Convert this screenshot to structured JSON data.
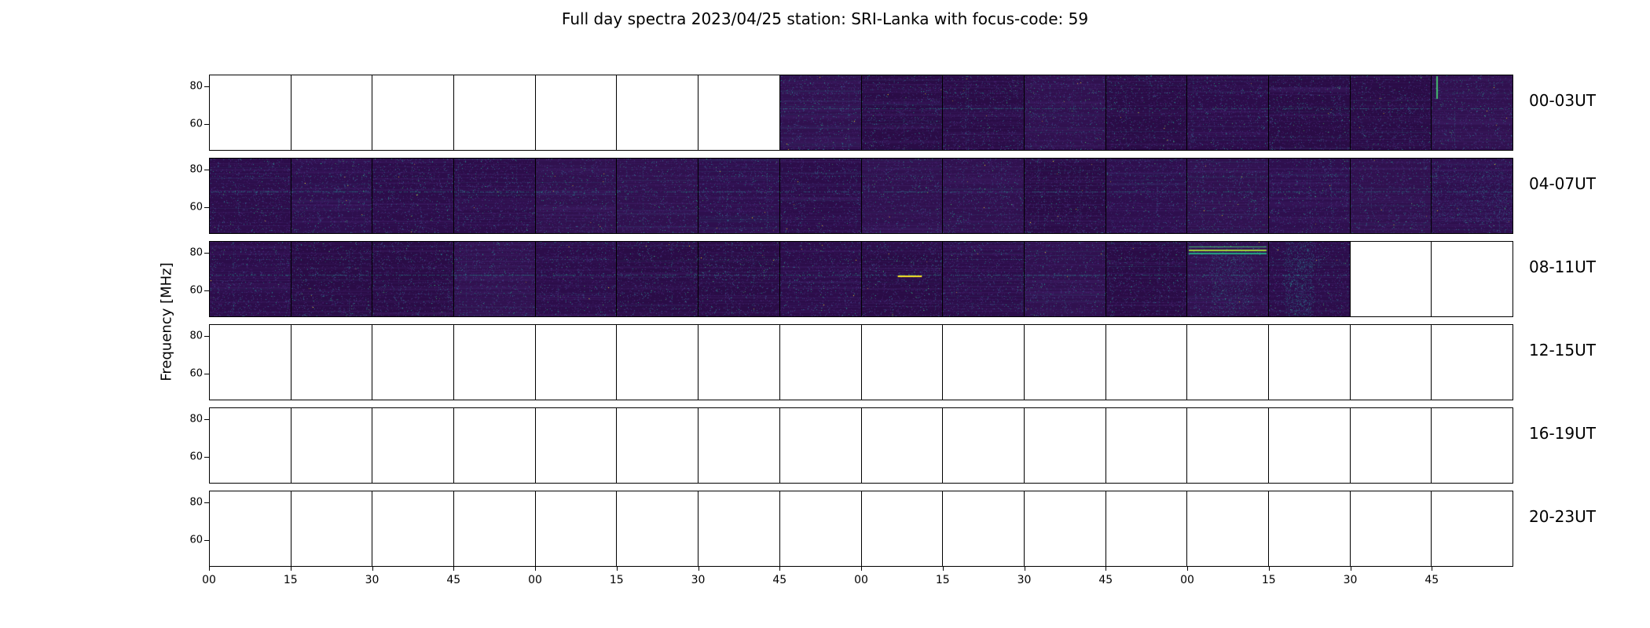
{
  "title": "Full day spectra 2023/04/25 station: SRI-Lanka with focus-code: 59",
  "chart_data": {
    "type": "heatmap",
    "title": "Full day spectra 2023/04/25 station: SRI-Lanka with focus-code: 59",
    "date": "2023/04/25",
    "station": "SRI-Lanka",
    "focus_code": "59",
    "ylabel": "Frequency [MHz]",
    "xlabel": "",
    "ylim": [
      46,
      86
    ],
    "y_ticks": [
      80,
      60
    ],
    "grid": "off",
    "legend": "none",
    "colormap": "viridis",
    "panels_per_row": 16,
    "minutes_per_panel": 15,
    "x_tick_labels": [
      "00",
      "15",
      "30",
      "45",
      "00",
      "15",
      "30",
      "45",
      "00",
      "15",
      "30",
      "45",
      "00",
      "15",
      "30",
      "45"
    ],
    "rows": [
      {
        "label": "00-03UT",
        "filled": [
          0,
          0,
          0,
          0,
          0,
          0,
          0,
          1,
          1,
          1,
          1,
          1,
          1,
          1,
          1,
          1
        ]
      },
      {
        "label": "04-07UT",
        "filled": [
          1,
          1,
          1,
          1,
          1,
          1,
          1,
          1,
          1,
          1,
          1,
          1,
          1,
          1,
          1,
          1
        ]
      },
      {
        "label": "08-11UT",
        "filled": [
          1,
          1,
          1,
          1,
          1,
          1,
          1,
          1,
          1,
          1,
          1,
          1,
          1,
          1,
          0,
          0
        ]
      },
      {
        "label": "12-15UT",
        "filled": [
          0,
          0,
          0,
          0,
          0,
          0,
          0,
          0,
          0,
          0,
          0,
          0,
          0,
          0,
          0,
          0
        ]
      },
      {
        "label": "16-19UT",
        "filled": [
          0,
          0,
          0,
          0,
          0,
          0,
          0,
          0,
          0,
          0,
          0,
          0,
          0,
          0,
          0,
          0
        ]
      },
      {
        "label": "20-23UT",
        "filled": [
          0,
          0,
          0,
          0,
          0,
          0,
          0,
          0,
          0,
          0,
          0,
          0,
          0,
          0,
          0,
          0
        ]
      }
    ],
    "features": [
      {
        "row": 0,
        "panel": 15,
        "type": "green_streak",
        "freq_mhz": 84
      },
      {
        "row": 1,
        "panel": 15,
        "type": "bright_patch",
        "freq_mhz": 70
      },
      {
        "row": 2,
        "panel": 8,
        "type": "yellow_dash",
        "freq_mhz": 68
      },
      {
        "row": 2,
        "panel": 12,
        "type": "bright_band",
        "freq_mhz": 82
      },
      {
        "row": 2,
        "panel": 13,
        "type": "teal_smear",
        "freq_mhz": 70
      }
    ],
    "palette": {
      "background": "#2c0d4a",
      "speckles": [
        "#482475",
        "#414487",
        "#355f8d",
        "#2a788e",
        "#21918c",
        "#22a884",
        "#44bf70",
        "#fde725"
      ],
      "line": "#21918c"
    },
    "empty_panel_color": "#ffffff",
    "axis_color": "#000000"
  }
}
